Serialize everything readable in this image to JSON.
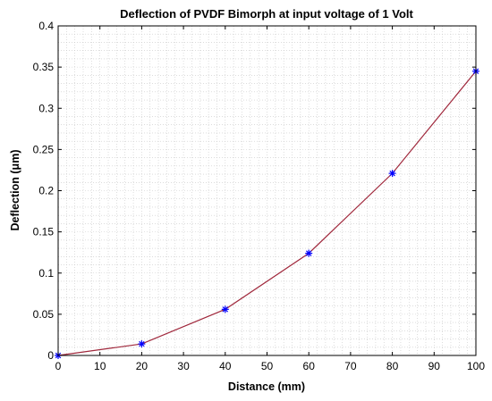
{
  "chart_data": {
    "type": "line",
    "title": "Deflection of PVDF Bimorph at input voltage of 1 Volt",
    "xlabel": "Distance (mm)",
    "ylabel": "Deflection (μm)",
    "xlim": [
      0,
      100
    ],
    "ylim": [
      0,
      0.4
    ],
    "xticks": [
      "0",
      "10",
      "20",
      "30",
      "40",
      "50",
      "60",
      "70",
      "80",
      "90",
      "100"
    ],
    "yticks": [
      "0",
      "0.05",
      "0.1",
      "0.15",
      "0.2",
      "0.25",
      "0.3",
      "0.35",
      "0.4"
    ],
    "grid": "on (dotted, major and minor)",
    "legend": "none",
    "series": [
      {
        "x": [
          0,
          20,
          40,
          60,
          80,
          100
        ],
        "y": [
          0,
          0.014,
          0.056,
          0.124,
          0.221,
          0.345
        ],
        "line_color": "#a0283c",
        "marker": "asterisk",
        "marker_color": "#0000ff"
      }
    ]
  }
}
